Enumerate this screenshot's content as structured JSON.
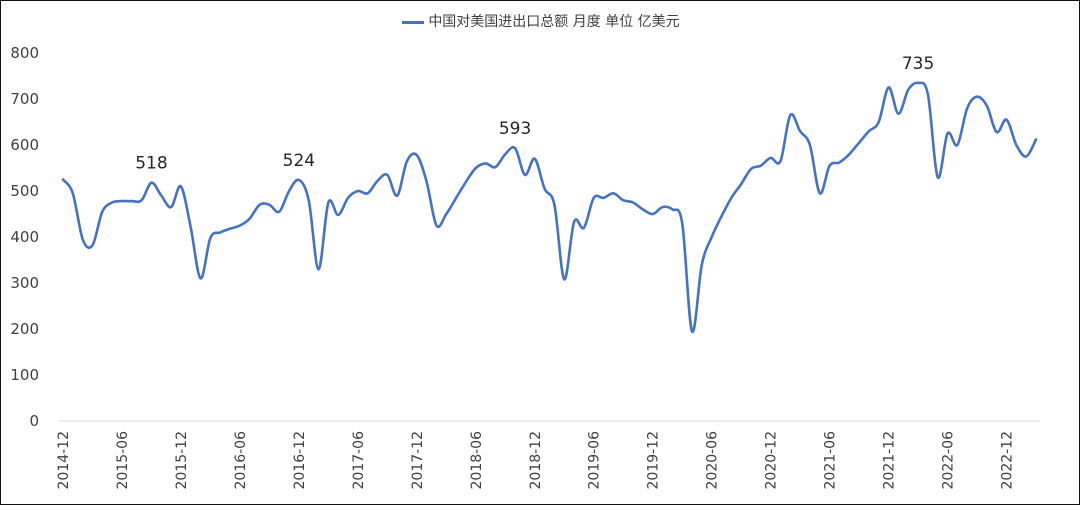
{
  "chart_data": {
    "type": "line",
    "series": [
      {
        "name": "中国对美国进出口总额 月度 单位 亿美元",
        "color": "#4472C4",
        "values": [
          525,
          495,
          395,
          382,
          455,
          475,
          478,
          478,
          480,
          518,
          490,
          465,
          510,
          420,
          310,
          398,
          410,
          418,
          425,
          440,
          470,
          470,
          455,
          500,
          524,
          480,
          330,
          475,
          448,
          485,
          500,
          495,
          522,
          535,
          490,
          565,
          578,
          520,
          425,
          450,
          485,
          520,
          550,
          560,
          552,
          580,
          593,
          535,
          570,
          505,
          470,
          308,
          433,
          420,
          485,
          485,
          495,
          480,
          475,
          460,
          450,
          465,
          460,
          430,
          195,
          340,
          400,
          445,
          485,
          515,
          548,
          555,
          572,
          565,
          665,
          630,
          600,
          495,
          555,
          562,
          580,
          605,
          630,
          650,
          725,
          668,
          720,
          735,
          710,
          530,
          625,
          600,
          680,
          705,
          685,
          628,
          655,
          600,
          575,
          612
        ]
      }
    ],
    "x_tick_labels": [
      "2014-12",
      "2015-06",
      "2015-12",
      "2016-06",
      "2016-12",
      "2017-06",
      "2017-12",
      "2018-06",
      "2018-12",
      "2019-06",
      "2019-12",
      "2020-06",
      "2020-12",
      "2021-06",
      "2021-12",
      "2022-06",
      "2022-12"
    ],
    "ylim": [
      0,
      800
    ],
    "y_ticks": [
      "0",
      "100",
      "200",
      "300",
      "400",
      "500",
      "600",
      "700",
      "800"
    ],
    "annotations": [
      {
        "index": 9,
        "label": "518"
      },
      {
        "index": 24,
        "label": "524"
      },
      {
        "index": 46,
        "label": "593"
      },
      {
        "index": 87,
        "label": "735"
      }
    ],
    "grid": false,
    "legend_position": "top-center"
  }
}
